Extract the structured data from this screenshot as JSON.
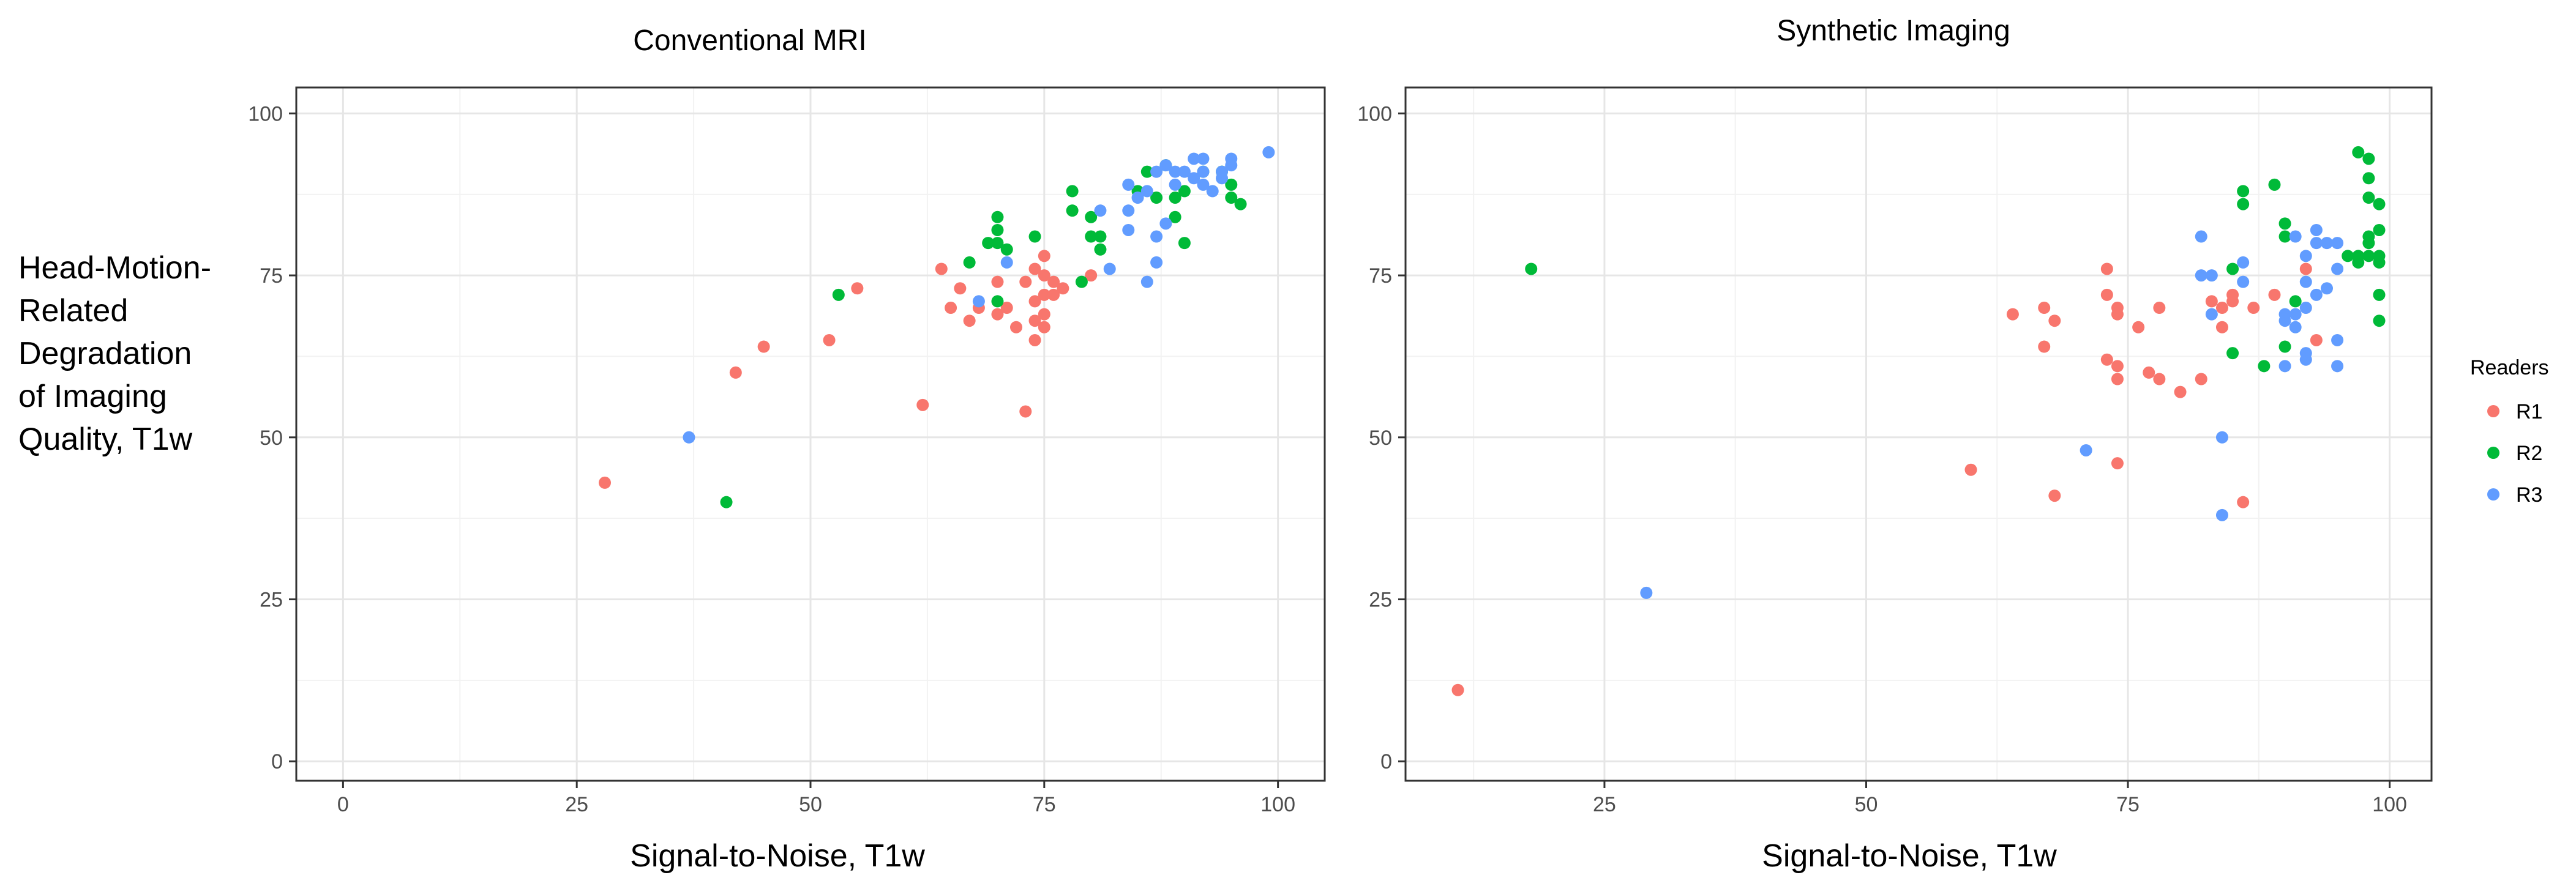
{
  "chart_data": [
    {
      "type": "scatter",
      "title": "Conventional MRI",
      "xlabel": "Signal-to-Noise, T1w",
      "ylabel": "Head-Motion-Related Degradation of Imaging Quality, T1w",
      "xlim": [
        -5,
        105
      ],
      "ylim": [
        -3,
        104
      ],
      "xticks": [
        0,
        25,
        50,
        75,
        100
      ],
      "yticks": [
        0,
        25,
        50,
        75,
        100
      ],
      "grid": true,
      "series": [
        {
          "name": "R1",
          "color": "#F8766D",
          "points": [
            [
              28,
              43
            ],
            [
              42,
              60
            ],
            [
              45,
              64
            ],
            [
              52,
              65
            ],
            [
              55,
              73
            ],
            [
              62,
              55
            ],
            [
              64,
              76
            ],
            [
              65,
              70
            ],
            [
              66,
              73
            ],
            [
              67,
              68
            ],
            [
              68,
              70
            ],
            [
              70,
              74
            ],
            [
              70,
              69
            ],
            [
              71,
              70
            ],
            [
              72,
              67
            ],
            [
              73,
              74
            ],
            [
              73,
              54
            ],
            [
              74,
              76
            ],
            [
              74,
              71
            ],
            [
              74,
              68
            ],
            [
              74,
              65
            ],
            [
              75,
              78
            ],
            [
              75,
              75
            ],
            [
              75,
              72
            ],
            [
              75,
              69
            ],
            [
              75,
              67
            ],
            [
              76,
              74
            ],
            [
              76,
              72
            ],
            [
              77,
              73
            ],
            [
              80,
              75
            ]
          ]
        },
        {
          "name": "R2",
          "color": "#00BA38",
          "points": [
            [
              41,
              40
            ],
            [
              53,
              72
            ],
            [
              67,
              77
            ],
            [
              69,
              80
            ],
            [
              70,
              84
            ],
            [
              70,
              82
            ],
            [
              70,
              80
            ],
            [
              70,
              71
            ],
            [
              71,
              79
            ],
            [
              74,
              81
            ],
            [
              78,
              88
            ],
            [
              78,
              85
            ],
            [
              79,
              74
            ],
            [
              80,
              84
            ],
            [
              80,
              81
            ],
            [
              81,
              81
            ],
            [
              81,
              79
            ],
            [
              85,
              88
            ],
            [
              86,
              91
            ],
            [
              87,
              87
            ],
            [
              88,
              92
            ],
            [
              89,
              84
            ],
            [
              89,
              87
            ],
            [
              90,
              88
            ],
            [
              90,
              80
            ],
            [
              92,
              91
            ],
            [
              94,
              91
            ],
            [
              95,
              89
            ],
            [
              95,
              87
            ],
            [
              96,
              86
            ]
          ]
        },
        {
          "name": "R3",
          "color": "#619CFF",
          "points": [
            [
              37,
              50
            ],
            [
              68,
              71
            ],
            [
              71,
              77
            ],
            [
              81,
              85
            ],
            [
              82,
              76
            ],
            [
              84,
              89
            ],
            [
              84,
              85
            ],
            [
              84,
              82
            ],
            [
              85,
              87
            ],
            [
              86,
              88
            ],
            [
              86,
              74
            ],
            [
              87,
              91
            ],
            [
              87,
              81
            ],
            [
              87,
              77
            ],
            [
              88,
              92
            ],
            [
              88,
              83
            ],
            [
              89,
              91
            ],
            [
              89,
              89
            ],
            [
              90,
              91
            ],
            [
              91,
              93
            ],
            [
              91,
              90
            ],
            [
              92,
              93
            ],
            [
              92,
              91
            ],
            [
              92,
              89
            ],
            [
              93,
              88
            ],
            [
              94,
              90
            ],
            [
              94,
              91
            ],
            [
              95,
              93
            ],
            [
              95,
              92
            ],
            [
              99,
              94
            ]
          ]
        }
      ]
    },
    {
      "type": "scatter",
      "title": "Synthetic Imaging",
      "xlabel": "Signal-to-Noise, T1w",
      "ylabel": "",
      "xlim": [
        6,
        104
      ],
      "ylim": [
        -3,
        104
      ],
      "xticks": [
        25,
        50,
        75,
        100
      ],
      "yticks": [
        0,
        25,
        50,
        75,
        100
      ],
      "grid": true,
      "legend": {
        "title": "Readers",
        "position": "right",
        "entries": [
          {
            "label": "R1",
            "color": "#F8766D"
          },
          {
            "label": "R2",
            "color": "#00BA38"
          },
          {
            "label": "R3",
            "color": "#619CFF"
          }
        ]
      },
      "series": [
        {
          "name": "R1",
          "color": "#F8766D",
          "points": [
            [
              11,
              11
            ],
            [
              60,
              45
            ],
            [
              64,
              69
            ],
            [
              67,
              70
            ],
            [
              67,
              64
            ],
            [
              68,
              68
            ],
            [
              68,
              41
            ],
            [
              73,
              76
            ],
            [
              73,
              72
            ],
            [
              73,
              62
            ],
            [
              74,
              70
            ],
            [
              74,
              69
            ],
            [
              74,
              61
            ],
            [
              74,
              59
            ],
            [
              74,
              46
            ],
            [
              76,
              67
            ],
            [
              77,
              60
            ],
            [
              78,
              70
            ],
            [
              78,
              59
            ],
            [
              80,
              57
            ],
            [
              82,
              59
            ],
            [
              83,
              71
            ],
            [
              84,
              70
            ],
            [
              84,
              67
            ],
            [
              85,
              72
            ],
            [
              85,
              71
            ],
            [
              86,
              40
            ],
            [
              87,
              70
            ],
            [
              89,
              72
            ],
            [
              92,
              76
            ],
            [
              93,
              65
            ]
          ]
        },
        {
          "name": "R2",
          "color": "#00BA38",
          "points": [
            [
              18,
              76
            ],
            [
              85,
              76
            ],
            [
              85,
              63
            ],
            [
              86,
              88
            ],
            [
              86,
              86
            ],
            [
              88,
              61
            ],
            [
              89,
              89
            ],
            [
              90,
              83
            ],
            [
              90,
              81
            ],
            [
              90,
              64
            ],
            [
              91,
              71
            ],
            [
              96,
              78
            ],
            [
              97,
              94
            ],
            [
              97,
              78
            ],
            [
              97,
              77
            ],
            [
              98,
              93
            ],
            [
              98,
              90
            ],
            [
              98,
              87
            ],
            [
              98,
              81
            ],
            [
              98,
              80
            ],
            [
              98,
              78
            ],
            [
              99,
              86
            ],
            [
              99,
              82
            ],
            [
              99,
              78
            ],
            [
              99,
              77
            ],
            [
              99,
              72
            ],
            [
              99,
              68
            ]
          ]
        },
        {
          "name": "R3",
          "color": "#619CFF",
          "points": [
            [
              29,
              26
            ],
            [
              71,
              48
            ],
            [
              82,
              81
            ],
            [
              82,
              75
            ],
            [
              83,
              75
            ],
            [
              83,
              69
            ],
            [
              84,
              50
            ],
            [
              84,
              38
            ],
            [
              86,
              77
            ],
            [
              86,
              74
            ],
            [
              90,
              69
            ],
            [
              90,
              68
            ],
            [
              90,
              61
            ],
            [
              91,
              81
            ],
            [
              91,
              69
            ],
            [
              91,
              67
            ],
            [
              92,
              78
            ],
            [
              92,
              74
            ],
            [
              92,
              70
            ],
            [
              92,
              63
            ],
            [
              92,
              62
            ],
            [
              93,
              82
            ],
            [
              93,
              80
            ],
            [
              93,
              72
            ],
            [
              94,
              80
            ],
            [
              94,
              73
            ],
            [
              95,
              80
            ],
            [
              95,
              76
            ],
            [
              95,
              65
            ],
            [
              95,
              61
            ]
          ]
        }
      ]
    }
  ]
}
